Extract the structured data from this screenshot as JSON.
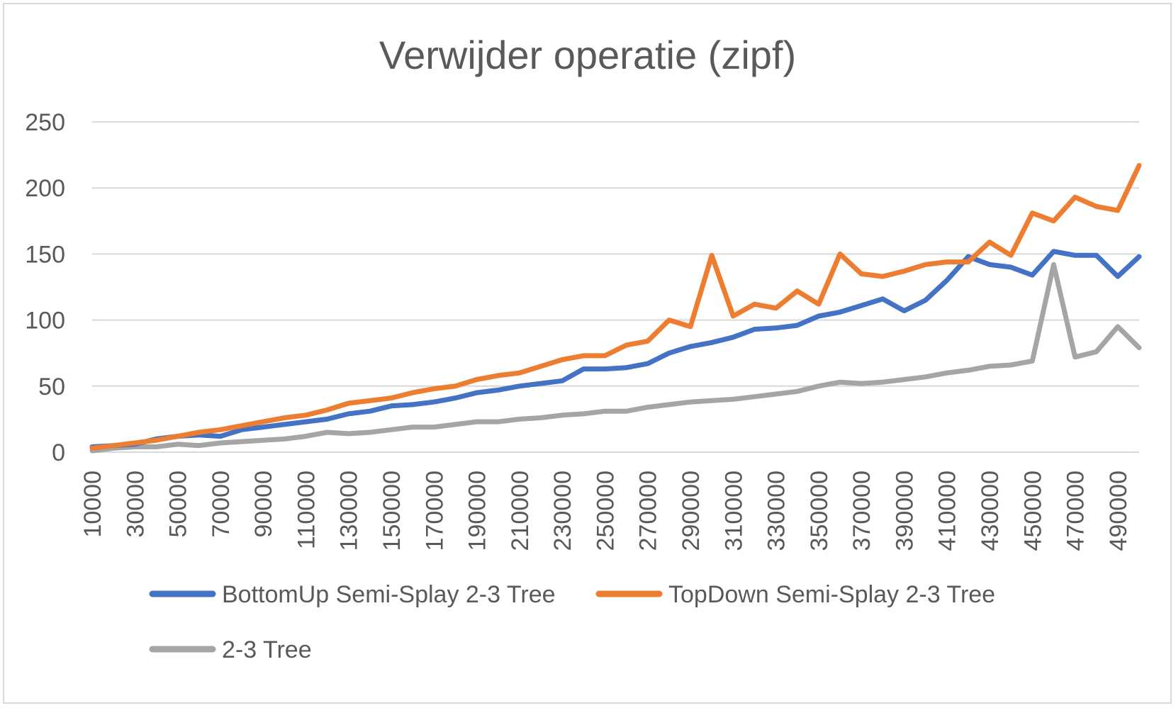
{
  "chart_data": {
    "type": "line",
    "title": "Verwijder operatie (zipf)",
    "xlabel": "",
    "ylabel": "",
    "ylim": [
      0,
      250
    ],
    "yticks": [
      0,
      50,
      100,
      150,
      200,
      250
    ],
    "grid": true,
    "legend_position": "bottom",
    "x": [
      10000,
      20000,
      30000,
      40000,
      50000,
      60000,
      70000,
      80000,
      90000,
      100000,
      110000,
      120000,
      130000,
      140000,
      150000,
      160000,
      170000,
      180000,
      190000,
      200000,
      210000,
      220000,
      230000,
      240000,
      250000,
      260000,
      270000,
      280000,
      290000,
      300000,
      310000,
      320000,
      330000,
      340000,
      350000,
      360000,
      370000,
      380000,
      390000,
      400000,
      410000,
      420000,
      430000,
      440000,
      450000,
      460000,
      470000,
      480000,
      490000,
      500000
    ],
    "x_tick_labels": [
      "10000",
      "30000",
      "50000",
      "70000",
      "90000",
      "110000",
      "130000",
      "150000",
      "170000",
      "190000",
      "210000",
      "230000",
      "250000",
      "270000",
      "290000",
      "310000",
      "330000",
      "350000",
      "370000",
      "390000",
      "410000",
      "430000",
      "450000",
      "470000",
      "490000"
    ],
    "series": [
      {
        "name": "BottomUp Semi-Splay 2-3 Tree",
        "color": "#4472c4",
        "values": [
          4,
          5,
          6,
          10,
          12,
          13,
          12,
          17,
          19,
          21,
          23,
          25,
          29,
          31,
          35,
          36,
          38,
          41,
          45,
          47,
          50,
          52,
          54,
          63,
          63,
          64,
          67,
          75,
          80,
          83,
          87,
          93,
          94,
          96,
          103,
          106,
          111,
          116,
          107,
          115,
          130,
          148,
          142,
          140,
          134,
          152,
          149,
          149,
          133,
          148
        ]
      },
      {
        "name": "TopDown Semi-Splay 2-3 Tree",
        "color": "#ed7d31",
        "values": [
          3,
          5,
          7,
          9,
          12,
          15,
          17,
          20,
          23,
          26,
          28,
          32,
          37,
          39,
          41,
          45,
          48,
          50,
          55,
          58,
          60,
          65,
          70,
          73,
          73,
          81,
          84,
          100,
          95,
          149,
          103,
          112,
          109,
          122,
          112,
          150,
          135,
          133,
          137,
          142,
          144,
          144,
          159,
          149,
          181,
          175,
          193,
          186,
          183,
          217
        ]
      },
      {
        "name": "2-3 Tree",
        "color": "#a5a5a5",
        "values": [
          1,
          3,
          4,
          4,
          6,
          5,
          7,
          8,
          9,
          10,
          12,
          15,
          14,
          15,
          17,
          19,
          19,
          21,
          23,
          23,
          25,
          26,
          28,
          29,
          31,
          31,
          34,
          36,
          38,
          39,
          40,
          42,
          44,
          46,
          50,
          53,
          52,
          53,
          55,
          57,
          60,
          62,
          65,
          66,
          69,
          142,
          72,
          76,
          95,
          79
        ]
      }
    ]
  }
}
